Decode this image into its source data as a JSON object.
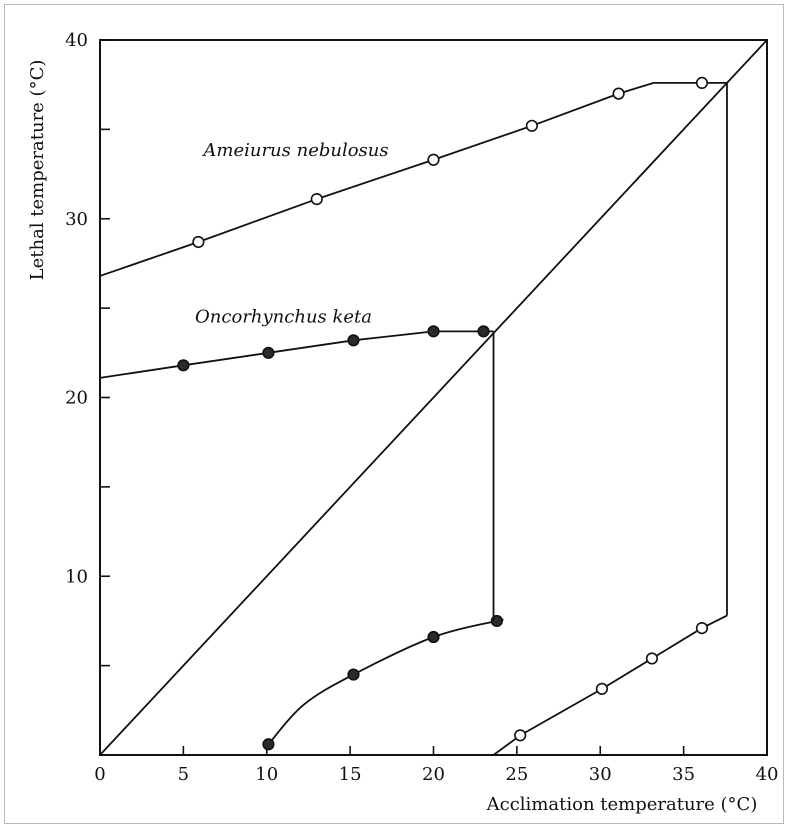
{
  "chart_data": {
    "type": "line",
    "xlabel": "Acclimation temperature (°C)",
    "ylabel": "Lethal temperature (°C)",
    "xlim": [
      0,
      40
    ],
    "ylim": [
      0,
      40
    ],
    "x_ticks": [
      0,
      5,
      10,
      15,
      20,
      25,
      30,
      35,
      40
    ],
    "y_ticks": [
      10,
      20,
      30,
      40
    ],
    "y_minor_ticks": [
      5,
      15,
      25,
      35
    ],
    "grid": false,
    "reference_line": {
      "from": [
        0,
        0
      ],
      "to": [
        40,
        40
      ]
    },
    "series": [
      {
        "name": "Ameiurus nebulosus",
        "marker": "open-circle",
        "upper_points": {
          "x": [
            5.9,
            13,
            20,
            25.9,
            31.1,
            36.1
          ],
          "y": [
            28.7,
            31.1,
            33.3,
            35.2,
            37,
            37.6
          ]
        },
        "upper_curve": {
          "x": [
            0,
            5.9,
            13,
            20,
            25.9,
            31.1,
            33.2,
            37.6
          ],
          "y": [
            26.8,
            28.7,
            31.1,
            33.3,
            35.2,
            37,
            37.6,
            37.6
          ]
        },
        "lower_points": {
          "x": [
            25.2,
            30.1,
            33.1,
            36.1
          ],
          "y": [
            1.1,
            3.7,
            5.4,
            7.1
          ]
        },
        "lower_curve": {
          "x": [
            23.6,
            25.2,
            30.1,
            33.1,
            36.1,
            37.6
          ],
          "y": [
            0,
            1.1,
            3.7,
            5.4,
            7.1,
            7.8
          ]
        },
        "label_anchor": {
          "x": 6.2,
          "y": 33.5
        }
      },
      {
        "name": "Oncorhynchus keta",
        "marker": "filled-circle",
        "upper_points": {
          "x": [
            5,
            10.1,
            15.2,
            20,
            23
          ],
          "y": [
            21.8,
            22.5,
            23.2,
            23.7,
            23.7
          ]
        },
        "upper_curve": {
          "x": [
            0,
            5,
            10.1,
            15.2,
            20,
            23.6
          ],
          "y": [
            21.1,
            21.8,
            22.5,
            23.2,
            23.7,
            23.7
          ]
        },
        "lower_points": {
          "x": [
            10.1,
            15.2,
            20,
            23.8
          ],
          "y": [
            0.6,
            4.5,
            6.6,
            7.5
          ]
        },
        "lower_curve": {
          "x": [
            10.1,
            12.2,
            15.2,
            20,
            23.8,
            24
          ],
          "y": [
            0.6,
            2.8,
            4.5,
            6.6,
            7.5,
            7.5
          ]
        },
        "label_anchor": {
          "x": 5.7,
          "y": 24.2
        }
      }
    ],
    "vertical_drops": [
      {
        "x": 23.6,
        "y_top": 23.7,
        "y_bottom": 7.5
      },
      {
        "x": 37.6,
        "y_top": 37.6,
        "y_bottom": 7.8
      }
    ]
  }
}
